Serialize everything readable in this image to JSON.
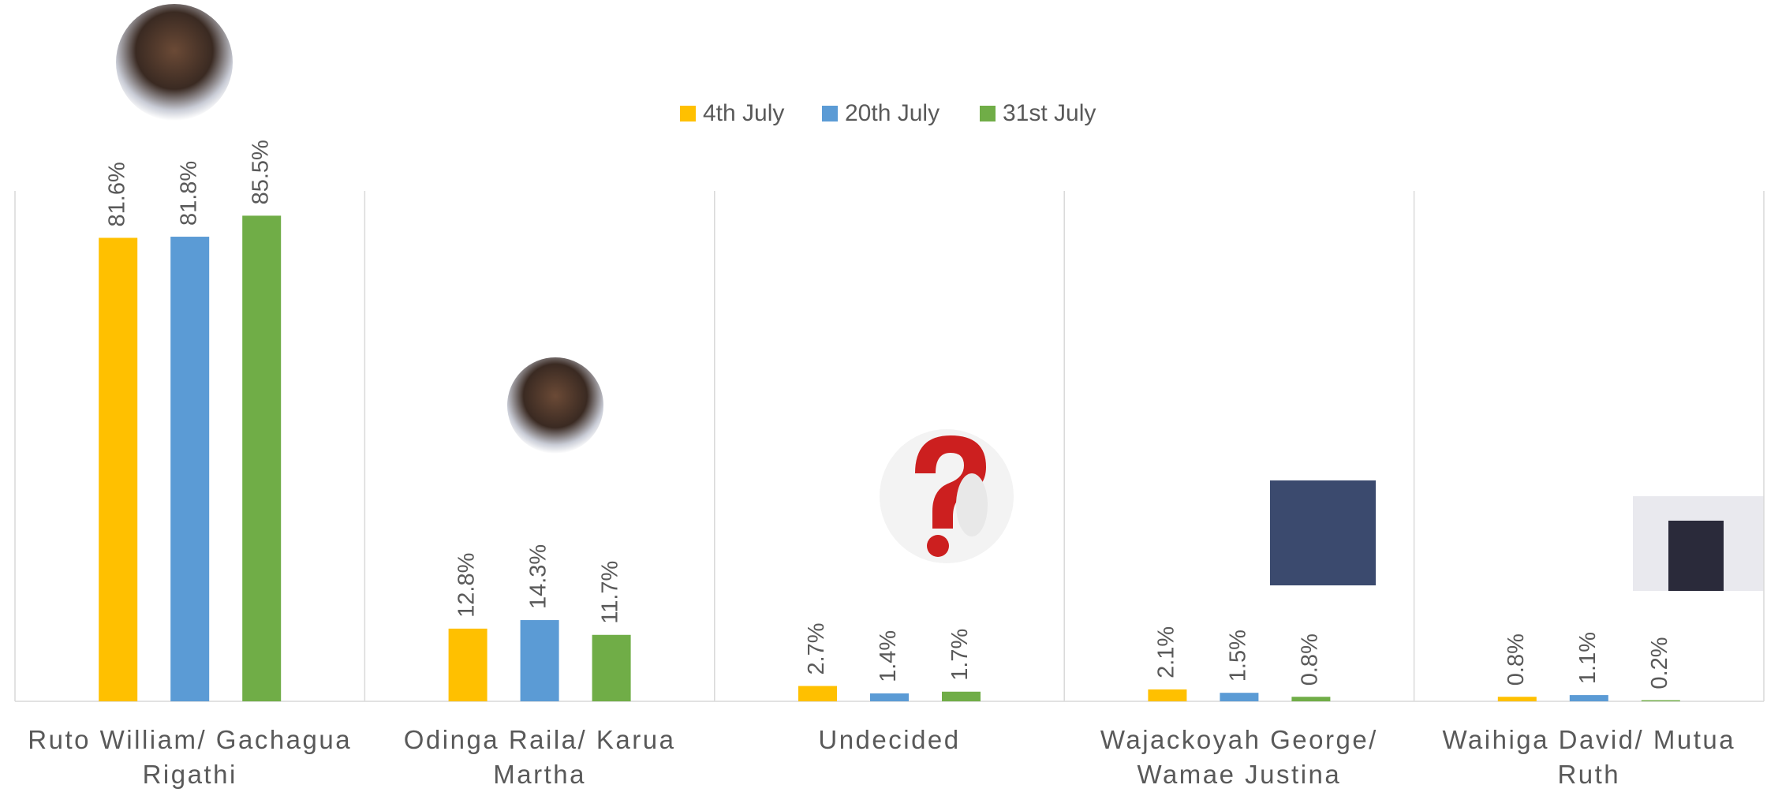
{
  "chart_data": {
    "type": "bar",
    "categories": [
      "Ruto William/ Gachagua Rigathi",
      "Odinga Raila/ Karua Martha",
      "Undecided",
      "Wajackoyah George/ Wamae Justina",
      "Waihiga David/ Mutua Ruth"
    ],
    "series": [
      {
        "name": "4th July",
        "color": "#FFC000",
        "values": [
          81.6,
          12.8,
          2.7,
          2.1,
          0.8
        ],
        "value_labels": [
          "81.6%",
          "12.8%",
          "2.7%",
          "2.1%",
          "0.8%"
        ]
      },
      {
        "name": "20th July",
        "color": "#5B9BD5",
        "values": [
          81.8,
          14.3,
          1.4,
          1.5,
          1.1
        ],
        "value_labels": [
          "81.8%",
          "14.3%",
          "1.4%",
          "1.5%",
          "1.1%"
        ]
      },
      {
        "name": "31st July",
        "color": "#70AD47",
        "values": [
          85.5,
          11.7,
          1.7,
          0.8,
          0.2
        ],
        "value_labels": [
          "85.5%",
          "11.7%",
          "1.7%",
          "0.8%",
          "0.2%"
        ]
      }
    ],
    "legend": "top"
  }
}
